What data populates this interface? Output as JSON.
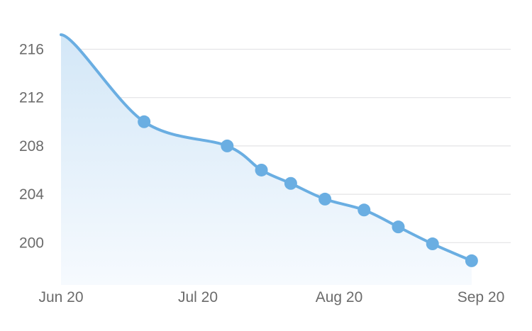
{
  "chart_data": {
    "type": "area",
    "title": "",
    "xlabel": "",
    "ylabel": "",
    "x_tick_labels": [
      "Jun 20",
      "Jul 20",
      "Aug 20",
      "Sep 20"
    ],
    "y_ticks": [
      200,
      204,
      208,
      212,
      216
    ],
    "ylim": [
      196.5,
      218.9
    ],
    "xlim": [
      "2020-06-20",
      "2020-09-20"
    ],
    "grid": "horizontal",
    "legend": "none",
    "series": [
      {
        "values": [
          {
            "x": "2020-06-20",
            "y": 217.2,
            "marker": false
          },
          {
            "x": "2020-07-07",
            "y": 210.0,
            "marker": true
          },
          {
            "x": "2020-07-24",
            "y": 208.0,
            "marker": true
          },
          {
            "x": "2020-07-31",
            "y": 206.0,
            "marker": true
          },
          {
            "x": "2020-08-06",
            "y": 204.9,
            "marker": true
          },
          {
            "x": "2020-08-13",
            "y": 203.6,
            "marker": true
          },
          {
            "x": "2020-08-21",
            "y": 202.7,
            "marker": true
          },
          {
            "x": "2020-08-28",
            "y": 201.3,
            "marker": true
          },
          {
            "x": "2020-09-04",
            "y": 199.9,
            "marker": true
          },
          {
            "x": "2020-09-12",
            "y": 198.5,
            "marker": true
          }
        ]
      }
    ],
    "colors": {
      "line": "#6aaee2",
      "fill_top": "#d3e7f7",
      "fill_bottom": "#f6fafe",
      "grid": "#e3e3e6",
      "tick_text": "#6b6b6b"
    }
  }
}
